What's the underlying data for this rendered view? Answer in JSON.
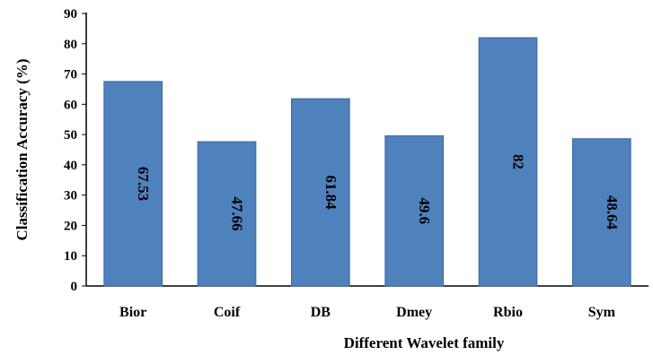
{
  "chart_data": {
    "type": "bar",
    "categories": [
      "Bior",
      "Coif",
      "DB",
      "Dmey",
      "Rbio",
      "Sym"
    ],
    "values": [
      67.53,
      47.66,
      61.84,
      49.6,
      82,
      48.64
    ],
    "data_labels": [
      "67.53",
      "47.66",
      "61.84",
      "49.6",
      "82",
      "48.64"
    ],
    "xlabel": "Different Wavelet family",
    "ylabel": "Classification Accuracy (%)",
    "ylim": [
      0,
      90
    ],
    "yticks": [
      0,
      10,
      20,
      30,
      40,
      50,
      60,
      70,
      80,
      90
    ],
    "grid": false,
    "legend": "none",
    "bar_color": "#4f81bd"
  }
}
